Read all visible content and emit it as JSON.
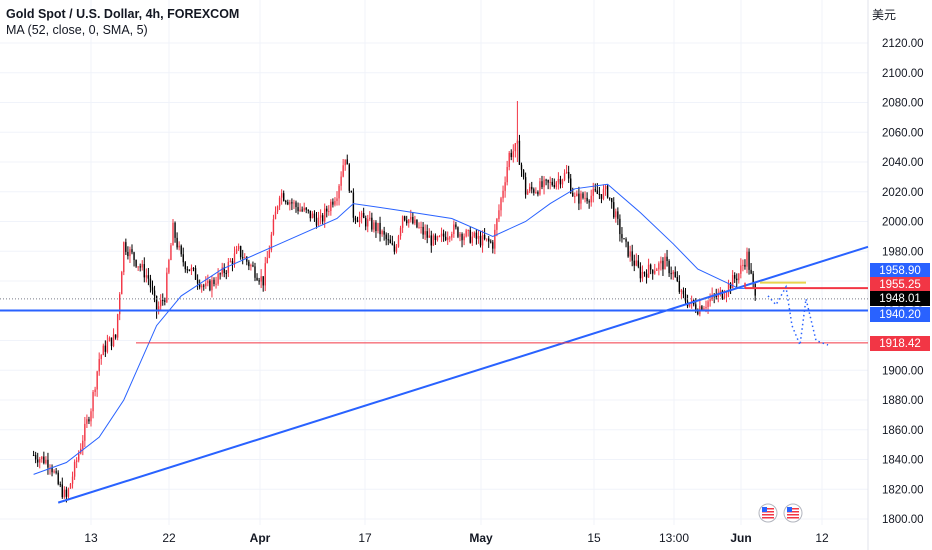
{
  "header": {
    "title": "Gold Spot / U.S. Dollar, 4h, FOREXCOM",
    "indicator": "MA (52, close, 0, SMA, 5)",
    "currency": "美元"
  },
  "chart_data": {
    "type": "candlestick",
    "symbol": "Gold Spot / U.S. Dollar",
    "timeframe": "4h",
    "exchange": "FOREXCOM",
    "ylim": [
      1795,
      2140
    ],
    "y_ticks": [
      1800,
      1820,
      1840,
      1860,
      1880,
      1900,
      1920,
      1940,
      1960,
      1980,
      2000,
      2020,
      2040,
      2060,
      2080,
      2100,
      2120
    ],
    "y_tick_labels": [
      "1800.00",
      "1820.00",
      "1840.00",
      "1860.00",
      "1880.00",
      "1900.00",
      "1920.00",
      "1940.00",
      "1960.00",
      "1980.00",
      "2000.00",
      "2020.00",
      "2040.00",
      "2060.00",
      "2080.00",
      "2100.00",
      "2120.00"
    ],
    "x_ticks": [
      {
        "label": "13",
        "bold": false
      },
      {
        "label": "22",
        "bold": false
      },
      {
        "label": "Apr",
        "bold": true
      },
      {
        "label": "17",
        "bold": false
      },
      {
        "label": "May",
        "bold": true
      },
      {
        "label": "15",
        "bold": false
      },
      {
        "label": "13:00",
        "bold": false
      },
      {
        "label": "Jun",
        "bold": true
      },
      {
        "label": "12",
        "bold": false
      }
    ],
    "price_path": [
      {
        "date": "Mar 6",
        "price": 1843
      },
      {
        "date": "Mar 8",
        "price": 1838
      },
      {
        "date": "Mar 9",
        "price": 1823
      },
      {
        "date": "Mar 10",
        "price": 1814
      },
      {
        "date": "Mar 13",
        "price": 1875
      },
      {
        "date": "Mar 14",
        "price": 1908
      },
      {
        "date": "Mar 15",
        "price": 1918
      },
      {
        "date": "Mar 16",
        "price": 1922
      },
      {
        "date": "Mar 17",
        "price": 1985
      },
      {
        "date": "Mar 20",
        "price": 1962
      },
      {
        "date": "Mar 21",
        "price": 1940
      },
      {
        "date": "Mar 22",
        "price": 1950
      },
      {
        "date": "Mar 23",
        "price": 1995
      },
      {
        "date": "Mar 24",
        "price": 1975
      },
      {
        "date": "Mar 27",
        "price": 1955
      },
      {
        "date": "Mar 29",
        "price": 1965
      },
      {
        "date": "Mar 31",
        "price": 1980
      },
      {
        "date": "Apr 3",
        "price": 1960
      },
      {
        "date": "Apr 5",
        "price": 2020
      },
      {
        "date": "Apr 7",
        "price": 2010
      },
      {
        "date": "Apr 10",
        "price": 2000
      },
      {
        "date": "Apr 12",
        "price": 2020
      },
      {
        "date": "Apr 13",
        "price": 2045
      },
      {
        "date": "Apr 14",
        "price": 2005
      },
      {
        "date": "Apr 17",
        "price": 1995
      },
      {
        "date": "Apr 19",
        "price": 1980
      },
      {
        "date": "Apr 20",
        "price": 2005
      },
      {
        "date": "Apr 24",
        "price": 1985
      },
      {
        "date": "Apr 26",
        "price": 1995
      },
      {
        "date": "Apr 28",
        "price": 1990
      },
      {
        "date": "May 1",
        "price": 1985
      },
      {
        "date": "May 2",
        "price": 2015
      },
      {
        "date": "May 3",
        "price": 2045
      },
      {
        "date": "May 4",
        "price": 2050
      },
      {
        "date": "May 5",
        "price": 2020
      },
      {
        "date": "May 8",
        "price": 2025
      },
      {
        "date": "May 10",
        "price": 2032
      },
      {
        "date": "May 11",
        "price": 2015
      },
      {
        "date": "May 15",
        "price": 2020
      },
      {
        "date": "May 17",
        "price": 1985
      },
      {
        "date": "May 19",
        "price": 1965
      },
      {
        "date": "May 22",
        "price": 1972
      },
      {
        "date": "May 23",
        "price": 1965
      },
      {
        "date": "May 24",
        "price": 1950
      },
      {
        "date": "May 25",
        "price": 1945
      },
      {
        "date": "May 26",
        "price": 1942
      },
      {
        "date": "May 29",
        "price": 1952
      },
      {
        "date": "May 31",
        "price": 1965
      },
      {
        "date": "Jun 1",
        "price": 1977
      },
      {
        "date": "Jun 2",
        "price": 1948
      }
    ],
    "ma_path": [
      {
        "date": "Mar 6",
        "price": 1830
      },
      {
        "date": "Mar 10",
        "price": 1838
      },
      {
        "date": "Mar 14",
        "price": 1855
      },
      {
        "date": "Mar 17",
        "price": 1880
      },
      {
        "date": "Mar 21",
        "price": 1930
      },
      {
        "date": "Mar 24",
        "price": 1950
      },
      {
        "date": "Mar 29",
        "price": 1968
      },
      {
        "date": "Apr 5",
        "price": 1985
      },
      {
        "date": "Apr 12",
        "price": 2002
      },
      {
        "date": "Apr 14",
        "price": 2012
      },
      {
        "date": "Apr 19",
        "price": 2008
      },
      {
        "date": "Apr 26",
        "price": 2002
      },
      {
        "date": "May 1",
        "price": 1990
      },
      {
        "date": "May 5",
        "price": 2000
      },
      {
        "date": "May 8",
        "price": 2012
      },
      {
        "date": "May 11",
        "price": 2022
      },
      {
        "date": "May 15",
        "price": 2025
      },
      {
        "date": "May 19",
        "price": 2006
      },
      {
        "date": "May 23",
        "price": 1985
      },
      {
        "date": "May 26",
        "price": 1968
      },
      {
        "date": "May 31",
        "price": 1955
      },
      {
        "date": "Jun 2",
        "price": 1955
      }
    ],
    "drawings": {
      "trendline": {
        "from": {
          "date": "Mar 9",
          "price": 1811
        },
        "to": {
          "date": "Jun 15",
          "price": 1958
        },
        "color": "#2962ff"
      },
      "support_line": {
        "price": 1940.2,
        "color": "#2962ff"
      },
      "target_line": {
        "price": 1918.42,
        "color": "#f23645"
      },
      "resistance_line": {
        "price": 1955.25,
        "color": "#f23645"
      },
      "yellow_line": {
        "price": 1958.9,
        "color": "#e8d44d"
      },
      "current_price_line": {
        "price": 1948.01
      }
    },
    "price_labels": [
      {
        "value": "1958.90",
        "bg": "#2962ff",
        "fg": "#ffffff"
      },
      {
        "value": "1955.25",
        "bg": "#f23645",
        "fg": "#ffffff"
      },
      {
        "value": "1948.01",
        "bg": "#000000",
        "fg": "#ffffff"
      },
      {
        "value": "1940.20",
        "bg": "#2962ff",
        "fg": "#ffffff"
      },
      {
        "value": "1918.42",
        "bg": "#f23645",
        "fg": "#ffffff"
      }
    ],
    "colors": {
      "up": "#f23645",
      "down": "#000000",
      "ma": "#2962ff",
      "grid": "#f0f3fa",
      "projection": "#2962ff"
    }
  }
}
